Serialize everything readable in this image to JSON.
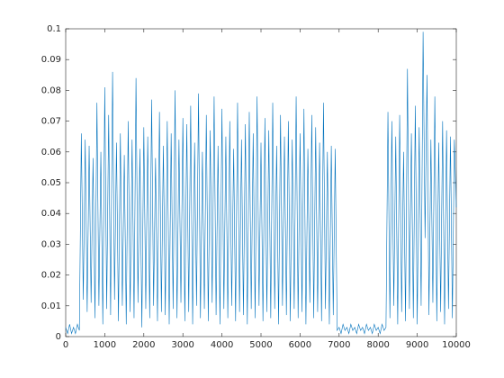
{
  "chart_data": {
    "type": "line",
    "x": [
      0,
      50,
      100,
      150,
      200,
      250,
      300,
      350,
      400,
      450,
      500,
      550,
      600,
      650,
      700,
      750,
      800,
      850,
      900,
      950,
      1000,
      1050,
      1100,
      1150,
      1200,
      1250,
      1300,
      1350,
      1400,
      1450,
      1500,
      1550,
      1600,
      1650,
      1700,
      1750,
      1800,
      1850,
      1900,
      1950,
      2000,
      2050,
      2100,
      2150,
      2200,
      2250,
      2300,
      2350,
      2400,
      2450,
      2500,
      2550,
      2600,
      2650,
      2700,
      2750,
      2800,
      2850,
      2900,
      2950,
      3000,
      3050,
      3100,
      3150,
      3200,
      3250,
      3300,
      3350,
      3400,
      3450,
      3500,
      3550,
      3600,
      3650,
      3700,
      3750,
      3800,
      3850,
      3900,
      3950,
      4000,
      4050,
      4100,
      4150,
      4200,
      4250,
      4300,
      4350,
      4400,
      4450,
      4500,
      4550,
      4600,
      4650,
      4700,
      4750,
      4800,
      4850,
      4900,
      4950,
      5000,
      5050,
      5100,
      5150,
      5200,
      5250,
      5300,
      5350,
      5400,
      5450,
      5500,
      5550,
      5600,
      5650,
      5700,
      5750,
      5800,
      5850,
      5900,
      5950,
      6000,
      6050,
      6100,
      6150,
      6200,
      6250,
      6300,
      6350,
      6400,
      6450,
      6500,
      6550,
      6600,
      6650,
      6700,
      6750,
      6800,
      6850,
      6900,
      6950,
      7000,
      7050,
      7100,
      7150,
      7200,
      7250,
      7300,
      7350,
      7400,
      7450,
      7500,
      7550,
      7600,
      7650,
      7700,
      7750,
      7800,
      7850,
      7900,
      7950,
      8000,
      8050,
      8100,
      8150,
      8200,
      8250,
      8300,
      8350,
      8400,
      8450,
      8500,
      8550,
      8600,
      8650,
      8700,
      8750,
      8800,
      8850,
      8900,
      8950,
      9000,
      9050,
      9100,
      9150,
      9200,
      9250,
      9300,
      9350,
      9400,
      9450,
      9500,
      9550,
      9600,
      9650,
      9700,
      9750,
      9800,
      9850,
      9900,
      9950,
      10000
    ],
    "series": [
      {
        "color": "#0072bd",
        "values": [
          0.003,
          0.001,
          0.004,
          0.001,
          0.003,
          0.001,
          0.004,
          0.002,
          0.066,
          0.012,
          0.064,
          0.008,
          0.062,
          0.011,
          0.058,
          0.006,
          0.076,
          0.01,
          0.06,
          0.004,
          0.081,
          0.009,
          0.072,
          0.007,
          0.086,
          0.012,
          0.063,
          0.005,
          0.066,
          0.01,
          0.059,
          0.004,
          0.07,
          0.008,
          0.064,
          0.006,
          0.084,
          0.011,
          0.061,
          0.003,
          0.068,
          0.009,
          0.065,
          0.006,
          0.077,
          0.01,
          0.058,
          0.005,
          0.073,
          0.008,
          0.062,
          0.007,
          0.07,
          0.004,
          0.066,
          0.009,
          0.08,
          0.006,
          0.064,
          0.011,
          0.071,
          0.005,
          0.069,
          0.008,
          0.075,
          0.004,
          0.063,
          0.01,
          0.079,
          0.006,
          0.06,
          0.009,
          0.072,
          0.005,
          0.067,
          0.011,
          0.078,
          0.007,
          0.062,
          0.004,
          0.074,
          0.009,
          0.065,
          0.006,
          0.07,
          0.01,
          0.061,
          0.005,
          0.076,
          0.008,
          0.064,
          0.007,
          0.069,
          0.004,
          0.073,
          0.009,
          0.066,
          0.006,
          0.078,
          0.01,
          0.063,
          0.005,
          0.071,
          0.008,
          0.067,
          0.006,
          0.076,
          0.009,
          0.062,
          0.004,
          0.072,
          0.01,
          0.065,
          0.007,
          0.07,
          0.005,
          0.064,
          0.009,
          0.078,
          0.006,
          0.066,
          0.008,
          0.074,
          0.004,
          0.061,
          0.011,
          0.072,
          0.006,
          0.068,
          0.008,
          0.063,
          0.005,
          0.076,
          0.009,
          0.06,
          0.004,
          0.062,
          0.007,
          0.061,
          0.002,
          0.003,
          0.001,
          0.004,
          0.002,
          0.003,
          0.001,
          0.004,
          0.002,
          0.003,
          0.001,
          0.004,
          0.002,
          0.003,
          0.001,
          0.004,
          0.002,
          0.003,
          0.001,
          0.004,
          0.002,
          0.003,
          0.001,
          0.004,
          0.002,
          0.003,
          0.073,
          0.006,
          0.07,
          0.01,
          0.065,
          0.004,
          0.072,
          0.008,
          0.06,
          0.005,
          0.087,
          0.009,
          0.066,
          0.006,
          0.075,
          0.004,
          0.068,
          0.01,
          0.099,
          0.032,
          0.085,
          0.007,
          0.064,
          0.011,
          0.078,
          0.005,
          0.063,
          0.008,
          0.07,
          0.004,
          0.067,
          0.009,
          0.065,
          0.006,
          0.064,
          0.042
        ]
      }
    ],
    "xlim": [
      0,
      10000
    ],
    "xticks": [
      0,
      1000,
      2000,
      3000,
      4000,
      5000,
      6000,
      7000,
      8000,
      9000,
      10000
    ],
    "ylim": [
      0,
      0.1
    ],
    "yticks": [
      0,
      0.01,
      0.02,
      0.03,
      0.04,
      0.05,
      0.06,
      0.07,
      0.08,
      0.09,
      0.1
    ],
    "grid": false
  }
}
